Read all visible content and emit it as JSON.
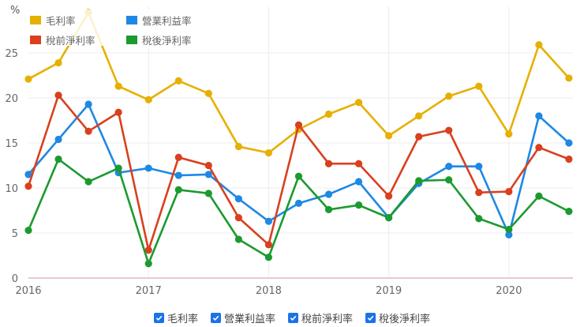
{
  "chart_data": {
    "type": "line",
    "title": "",
    "xlabel": "",
    "ylabel": "%",
    "ylim": [
      0,
      30
    ],
    "yticks": [
      0,
      5,
      10,
      15,
      20,
      25
    ],
    "xtick_labels": [
      "2016",
      "2017",
      "2018",
      "2019",
      "2020"
    ],
    "grid": true,
    "legend_position": "top-left inside",
    "x": [
      "2016Q1",
      "2016Q2",
      "2016Q3",
      "2016Q4",
      "2017Q1",
      "2017Q2",
      "2017Q3",
      "2017Q4",
      "2018Q1",
      "2018Q2",
      "2018Q3",
      "2018Q4",
      "2019Q1",
      "2019Q2",
      "2019Q3",
      "2019Q4",
      "2020Q1",
      "2020Q2",
      "2020Q3"
    ],
    "series": [
      {
        "name": "毛利率",
        "color": "#e6b000",
        "values": [
          22.1,
          23.9,
          29.5,
          21.3,
          19.8,
          21.9,
          20.5,
          14.6,
          13.9,
          16.5,
          18.2,
          19.5,
          15.8,
          18.0,
          20.2,
          21.3,
          16.0,
          25.9,
          22.2
        ]
      },
      {
        "name": "營業利益率",
        "color": "#1e88e5",
        "values": [
          11.5,
          15.4,
          19.3,
          11.7,
          12.2,
          11.4,
          11.5,
          8.8,
          6.3,
          8.3,
          9.3,
          10.7,
          6.7,
          10.5,
          12.4,
          12.4,
          4.8,
          18.0,
          15.0
        ]
      },
      {
        "name": "稅前淨利率",
        "color": "#d9401e",
        "values": [
          10.2,
          20.3,
          16.3,
          18.4,
          3.1,
          13.4,
          12.5,
          6.7,
          3.7,
          17.0,
          12.7,
          12.7,
          9.1,
          15.7,
          16.4,
          9.5,
          9.6,
          14.5,
          13.2
        ]
      },
      {
        "name": "稅後淨利率",
        "color": "#1b9a2f",
        "values": [
          5.3,
          13.2,
          10.7,
          12.2,
          1.6,
          9.8,
          9.4,
          4.3,
          2.3,
          11.3,
          7.6,
          8.1,
          6.7,
          10.8,
          10.9,
          6.6,
          5.4,
          9.1,
          7.4
        ]
      }
    ]
  },
  "axis": {
    "unit": "%"
  },
  "legend": {
    "items": [
      {
        "label": "毛利率",
        "color": "#e6b000"
      },
      {
        "label": "營業利益率",
        "color": "#1e88e5"
      },
      {
        "label": "稅前淨利率",
        "color": "#d9401e"
      },
      {
        "label": "稅後淨利率",
        "color": "#1b9a2f"
      }
    ]
  },
  "toggles": [
    {
      "label": "毛利率",
      "checked": true
    },
    {
      "label": "營業利益率",
      "checked": true
    },
    {
      "label": "稅前淨利率",
      "checked": true
    },
    {
      "label": "稅後淨利率",
      "checked": true
    }
  ]
}
